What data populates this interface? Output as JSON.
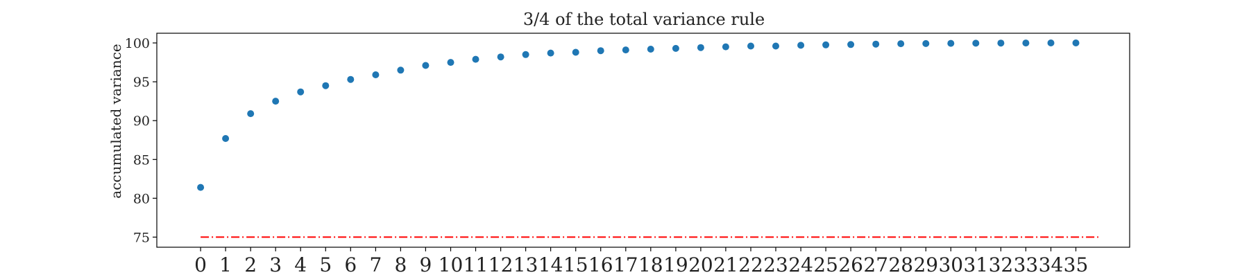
{
  "chart_data": {
    "type": "scatter",
    "title": "3/4 of the total variance rule",
    "xlabel": "",
    "ylabel": "accumulated variance",
    "x": [
      0,
      1,
      2,
      3,
      4,
      5,
      6,
      7,
      8,
      9,
      10,
      11,
      12,
      13,
      14,
      15,
      16,
      17,
      18,
      19,
      20,
      21,
      22,
      23,
      24,
      25,
      26,
      27,
      28,
      29,
      30,
      31,
      32,
      33,
      34,
      35
    ],
    "x_tick_labels": [
      "0",
      "1",
      "2",
      "3",
      "4",
      "5",
      "6",
      "7",
      "8",
      "9",
      "10",
      "11",
      "12",
      "13",
      "14",
      "15",
      "16",
      "17",
      "18",
      "19",
      "20",
      "21",
      "22",
      "23",
      "24",
      "25",
      "26",
      "27",
      "28",
      "29",
      "30",
      "31",
      "32",
      "33",
      "34",
      "35"
    ],
    "y_tick_labels": [
      "75",
      "80",
      "85",
      "90",
      "95",
      "100"
    ],
    "series": [
      {
        "values": [
          81.4,
          87.7,
          90.9,
          92.5,
          93.7,
          94.5,
          95.3,
          95.9,
          96.5,
          97.1,
          97.5,
          97.9,
          98.2,
          98.5,
          98.7,
          98.8,
          99.0,
          99.1,
          99.2,
          99.3,
          99.4,
          99.5,
          99.6,
          99.6,
          99.7,
          99.75,
          99.8,
          99.85,
          99.9,
          99.92,
          99.95,
          99.97,
          99.98,
          99.99,
          100.0,
          100.0
        ],
        "color": "#1f77b4",
        "marker": "circle"
      }
    ],
    "threshold_line": {
      "y": 75,
      "x_range": [
        0,
        35.9
      ],
      "color": "#ff0000",
      "style": "dash-dot"
    },
    "xlim": [
      -1.75,
      37.15
    ],
    "ylim": [
      73.7,
      101.25
    ],
    "grid": false,
    "legend": "none"
  }
}
